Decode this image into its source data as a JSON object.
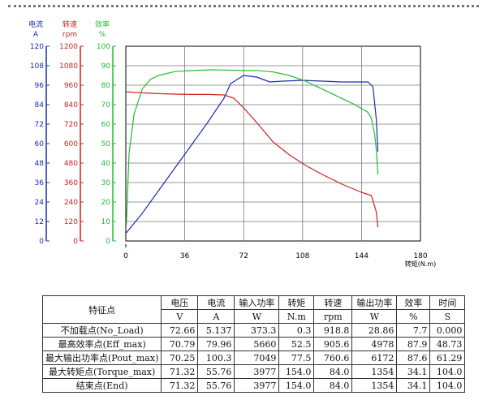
{
  "chart_data": {
    "type": "line",
    "title": "",
    "xlabel": "转矩(N.m)",
    "xlim": [
      0,
      180
    ],
    "x_ticks": [
      "0",
      "36",
      "72",
      "108",
      "144",
      "180"
    ],
    "axes": [
      {
        "id": "current",
        "name": "电流",
        "unit": "A",
        "color": "#1a2cb0",
        "range": [
          0,
          120
        ],
        "ticks": [
          "0",
          "12",
          "24",
          "36",
          "48",
          "60",
          "72",
          "84",
          "96",
          "108",
          "120"
        ]
      },
      {
        "id": "speed",
        "name": "转速",
        "unit": "rpm",
        "color": "#cc2222",
        "range": [
          0,
          1200
        ],
        "ticks": [
          "0",
          "120",
          "240",
          "360",
          "480",
          "600",
          "720",
          "840",
          "960",
          "1080",
          "1200"
        ]
      },
      {
        "id": "eff",
        "name": "效率",
        "unit": "%",
        "color": "#22bb33",
        "range": [
          0,
          100
        ],
        "ticks": [
          "0",
          "10",
          "20",
          "30",
          "40",
          "50",
          "60",
          "70",
          "80",
          "90",
          "100"
        ]
      }
    ],
    "series": [
      {
        "axis": "current",
        "color": "#1a2cb0",
        "x": [
          0.3,
          10,
          20,
          30,
          40,
          50,
          60,
          64,
          72,
          80,
          88,
          96,
          108,
          120,
          132,
          148,
          151,
          153,
          154
        ],
        "y": [
          5,
          17,
          31,
          45,
          59,
          73,
          88,
          97,
          102,
          101,
          98,
          98.5,
          99,
          98.5,
          98,
          98,
          95,
          75,
          55
        ]
      },
      {
        "axis": "speed",
        "color": "#cc2222",
        "x": [
          0.3,
          10,
          20,
          30,
          40,
          50,
          60,
          66,
          72,
          80,
          90,
          100,
          110,
          120,
          132,
          144,
          150,
          153,
          154
        ],
        "y": [
          918.8,
          913,
          908,
          905,
          903,
          903,
          900,
          880,
          820,
          730,
          610,
          530,
          465,
          410,
          350,
          300,
          280,
          180,
          84
        ]
      },
      {
        "axis": "eff",
        "color": "#22bb33",
        "x": [
          0.3,
          2,
          5,
          10,
          15,
          20,
          30,
          40,
          52.5,
          60,
          72,
          80,
          90,
          100,
          110,
          120,
          130,
          140,
          148,
          150,
          152,
          153,
          154
        ],
        "y": [
          7.7,
          45,
          65,
          78,
          83,
          85,
          87,
          87.5,
          87.9,
          87.8,
          87.5,
          87.6,
          86.8,
          85,
          82,
          78,
          74,
          70,
          66,
          63,
          55,
          47,
          34.1
        ]
      }
    ]
  },
  "table": {
    "header_row1": [
      "特征点",
      "电压",
      "电流",
      "输入功率",
      "转矩",
      "转速",
      "输出功率",
      "效率",
      "时间"
    ],
    "header_row2": [
      "V",
      "A",
      "W",
      "N.m",
      "rpm",
      "W",
      "%",
      "S"
    ],
    "rows": [
      [
        "不加载点(No_Load)",
        "72.66",
        "5.137",
        "373.3",
        "0.3",
        "918.8",
        "28.86",
        "7.7",
        "0.000"
      ],
      [
        "最高效率点(Eff_max)",
        "70.79",
        "79.96",
        "5660",
        "52.5",
        "905.6",
        "4978",
        "87.9",
        "48.73"
      ],
      [
        "最大输出功率点(Pout_max)",
        "70.25",
        "100.3",
        "7049",
        "77.5",
        "760.6",
        "6172",
        "87.6",
        "61.29"
      ],
      [
        "最大转矩点(Torque_max)",
        "71.32",
        "55.76",
        "3977",
        "154.0",
        "84.0",
        "1354",
        "34.1",
        "104.0"
      ],
      [
        "结束点(End)",
        "71.32",
        "55.76",
        "3977",
        "154.0",
        "84.0",
        "1354",
        "34.1",
        "104.0"
      ]
    ]
  }
}
